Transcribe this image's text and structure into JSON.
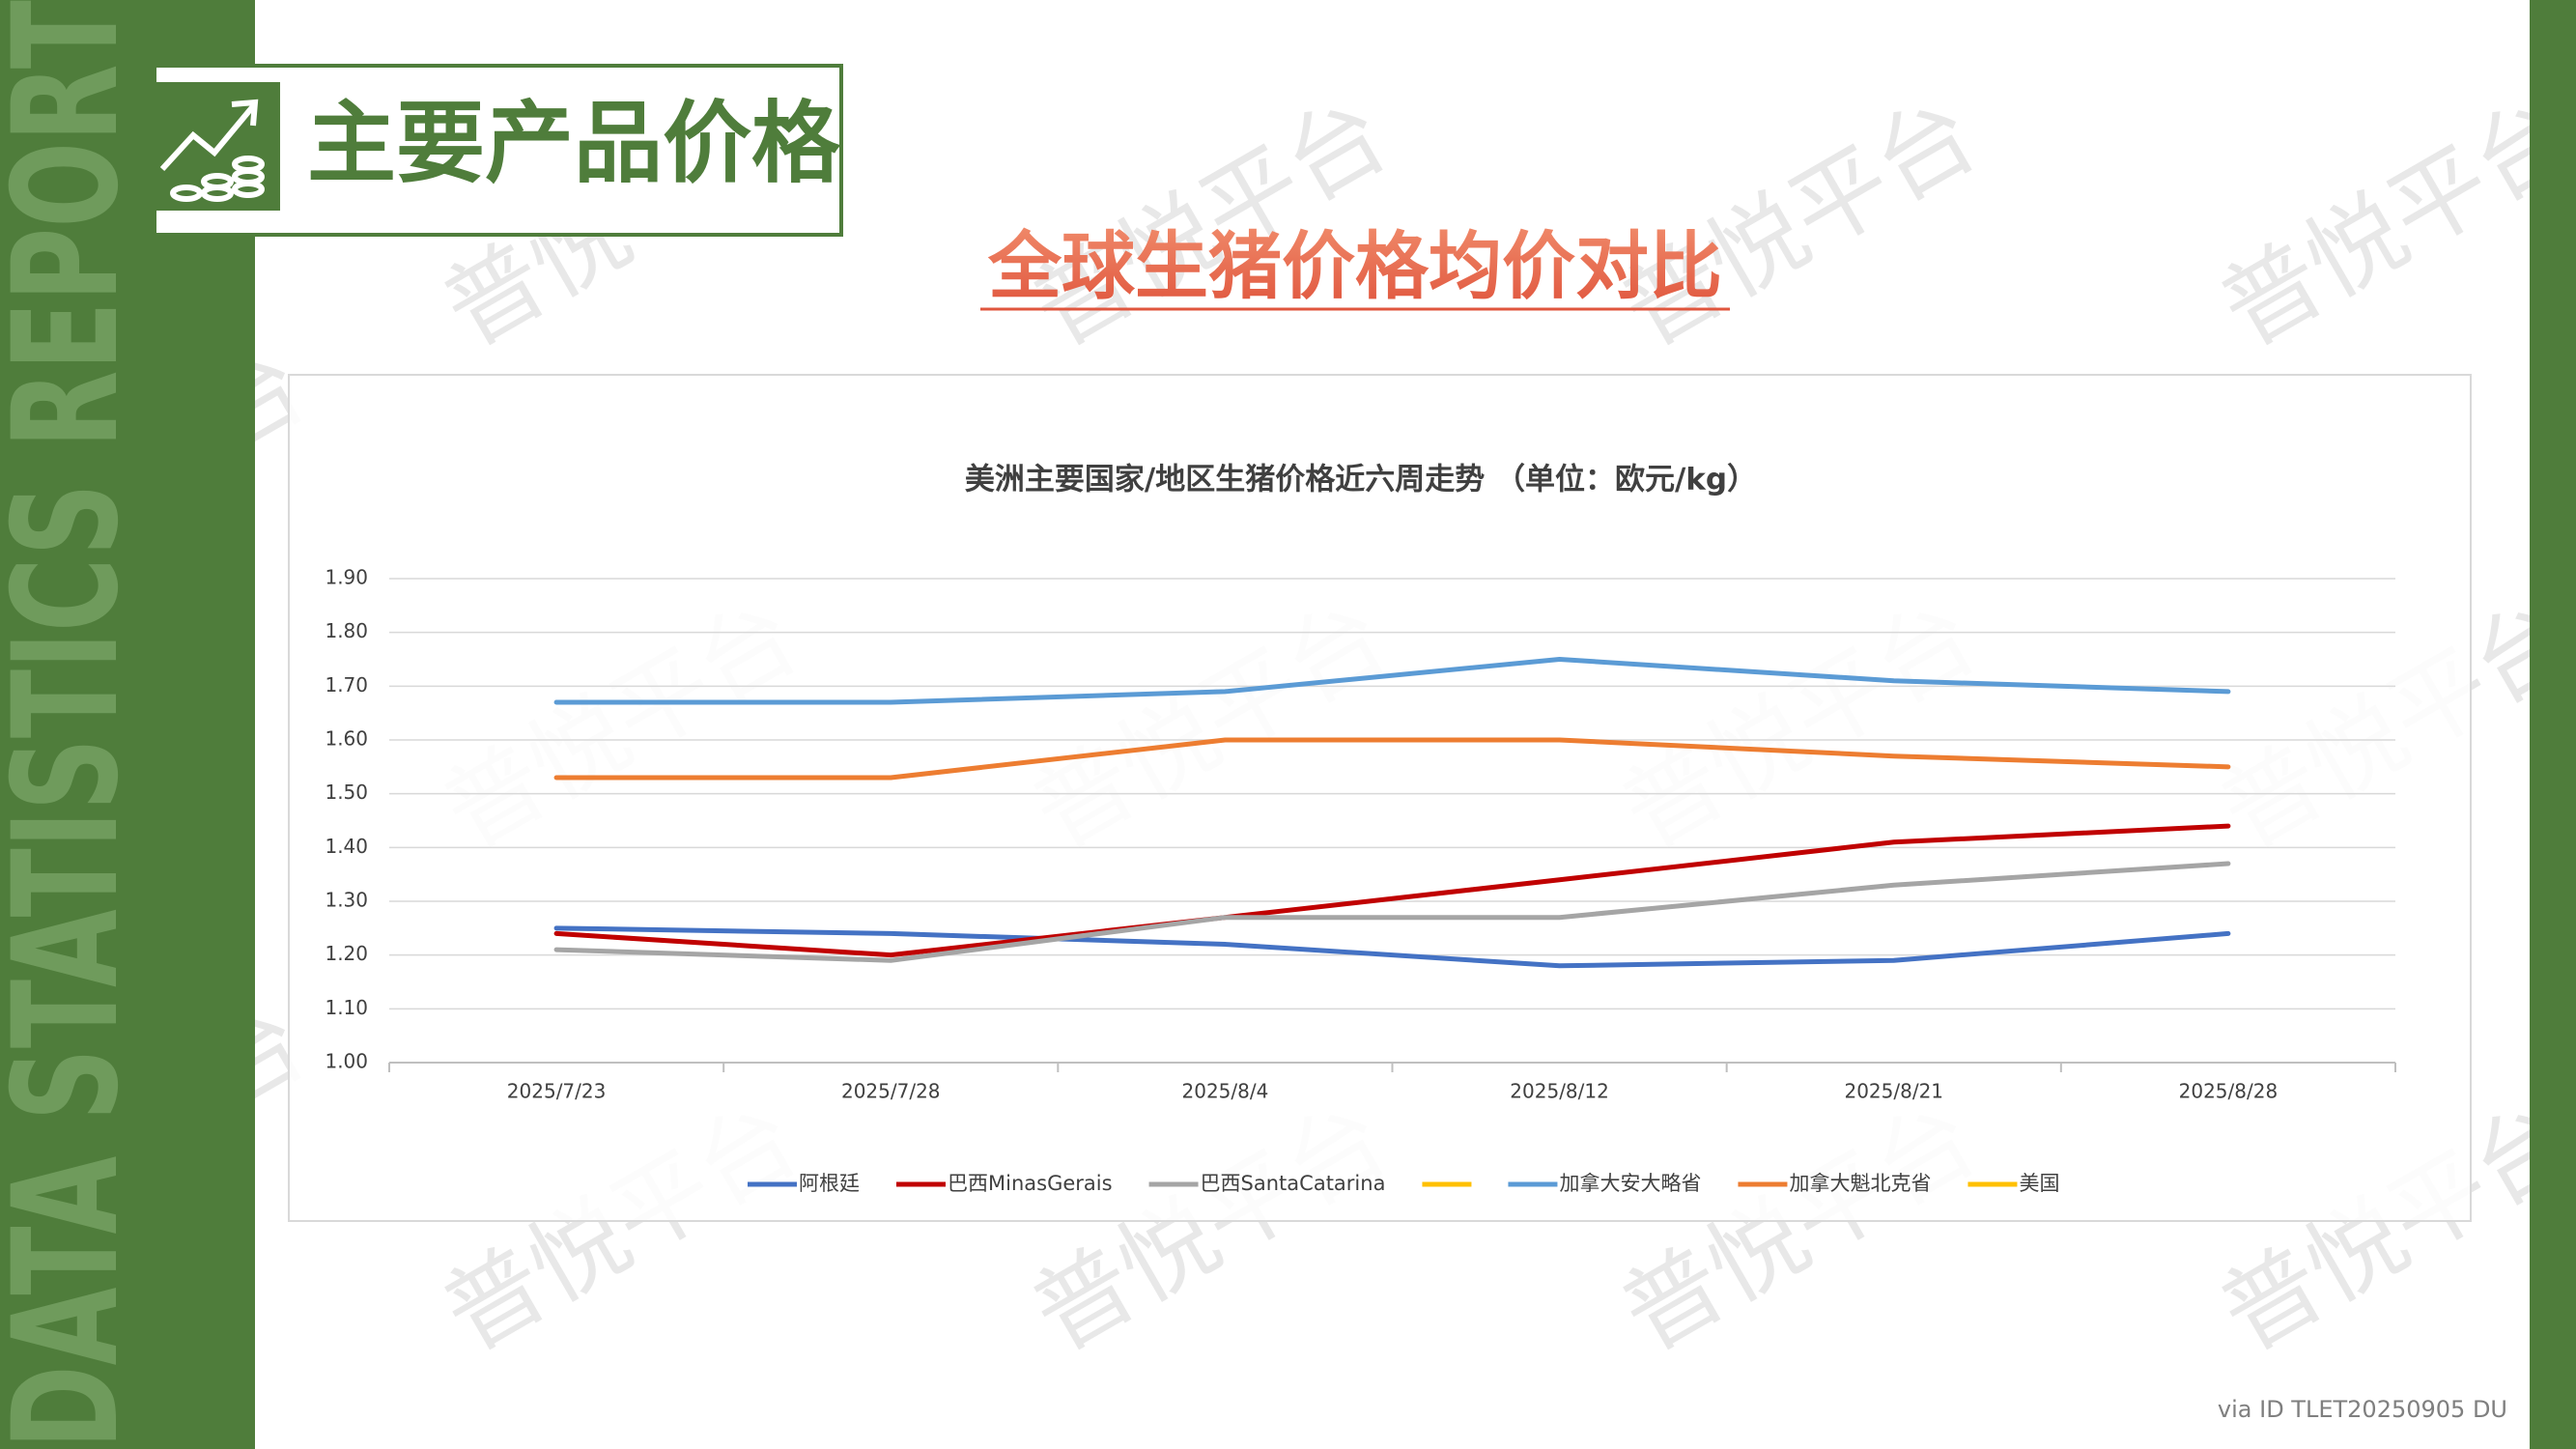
{
  "side_banner": "DATA STATISTICS REPORT",
  "header": {
    "title": "主要产品价格"
  },
  "subtitle": "全球生猪价格均价对比",
  "watermark": "普悦平台",
  "footer": "via ID TLET20250905 DU",
  "chart_data": {
    "type": "line",
    "title": "美洲主要国家/地区生猪价格近六周走势 （单位：欧元/kg）",
    "categories": [
      "2025/7/23",
      "2025/7/28",
      "2025/8/4",
      "2025/8/12",
      "2025/8/21",
      "2025/8/28"
    ],
    "series": [
      {
        "name": "阿根廷",
        "color": "#4472c4",
        "values": [
          1.25,
          1.24,
          1.22,
          1.18,
          1.19,
          1.24
        ]
      },
      {
        "name": "巴西MinasGerais",
        "color": "#c00000",
        "values": [
          1.24,
          1.2,
          1.27,
          1.34,
          1.41,
          1.44
        ]
      },
      {
        "name": "巴西SantaCatarina",
        "color": "#a5a5a5",
        "values": [
          1.21,
          1.19,
          1.27,
          1.27,
          1.33,
          1.37
        ]
      },
      {
        "name": null,
        "color": "#ffc000",
        "values": [
          null,
          null,
          null,
          null,
          null,
          null
        ]
      },
      {
        "name": "加拿大安大略省",
        "color": "#5b9bd5",
        "values": [
          1.67,
          1.67,
          1.69,
          1.75,
          1.71,
          1.69
        ]
      },
      {
        "name": "加拿大魁北克省",
        "color": "#ed7d31",
        "values": [
          1.53,
          1.53,
          1.6,
          1.6,
          1.57,
          1.55
        ]
      },
      {
        "name": "美国",
        "color": "#ffc000",
        "values": [
          null,
          null,
          null,
          null,
          null,
          null
        ]
      }
    ],
    "ylim": [
      1.0,
      1.9
    ],
    "yticks": [
      {
        "value": 1.0,
        "label": "1.00"
      },
      {
        "value": 1.1,
        "label": "1.10"
      },
      {
        "value": 1.2,
        "label": "1.20"
      },
      {
        "value": 1.3,
        "label": "1.30"
      },
      {
        "value": 1.4,
        "label": "1.40"
      },
      {
        "value": 1.5,
        "label": "1.50"
      },
      {
        "value": 1.6,
        "label": "1.60"
      },
      {
        "value": 1.7,
        "label": "1.70"
      },
      {
        "value": 1.8,
        "label": "1.80"
      },
      {
        "value": 1.9,
        "label": "1.90"
      }
    ],
    "grid": true,
    "legend": "bottom"
  }
}
